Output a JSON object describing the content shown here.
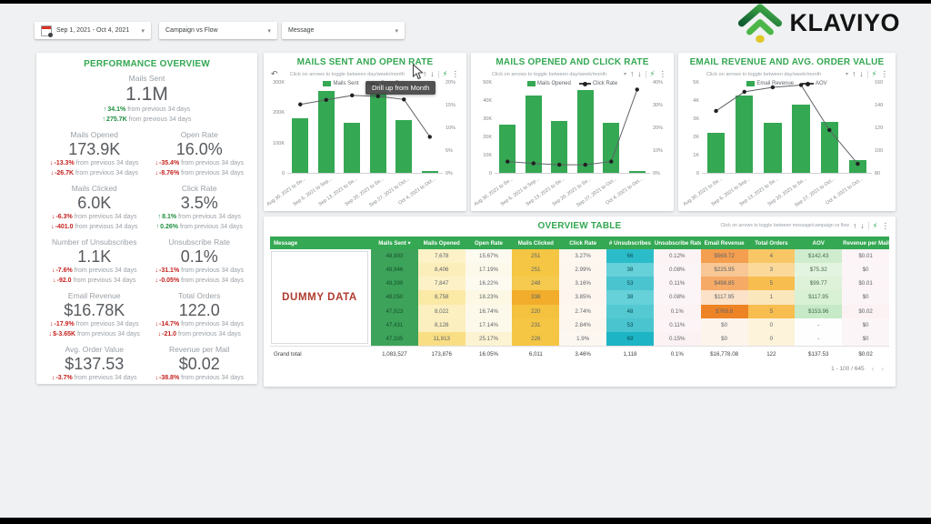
{
  "filters": {
    "date_range": {
      "label": "Sep 1, 2021 - Oct 4, 2021"
    },
    "campaign_flow": {
      "label": "Campaign vs Flow"
    },
    "message": {
      "label": "Message"
    }
  },
  "logo": {
    "text": "KLAVIYO"
  },
  "performance": {
    "title": "PERFORMANCE OVERVIEW",
    "metrics": [
      {
        "label": "Mails Sent",
        "value": "1.1M",
        "wide": true,
        "changes": [
          {
            "dir": "up",
            "value": "34.1%",
            "suffix": "from previous 34 days"
          },
          {
            "dir": "up",
            "value": "275.7K",
            "suffix": "from previous 34 days"
          }
        ]
      },
      {
        "label": "Mails Opened",
        "value": "173.9K",
        "changes": [
          {
            "dir": "down",
            "value": "-13.3%",
            "suffix": "from previous 34 days"
          },
          {
            "dir": "down",
            "value": "-26.7K",
            "suffix": "from previous 34 days"
          }
        ]
      },
      {
        "label": "Open Rate",
        "value": "16.0%",
        "changes": [
          {
            "dir": "down",
            "value": "-35.4%",
            "suffix": "from previous 34 days"
          },
          {
            "dir": "down",
            "value": "-8.76%",
            "suffix": "from previous 34 days"
          }
        ]
      },
      {
        "label": "Mails Clicked",
        "value": "6.0K",
        "changes": [
          {
            "dir": "down",
            "value": "-6.3%",
            "suffix": "from previous 34 days"
          },
          {
            "dir": "down",
            "value": "-401.0",
            "suffix": "from previous 34 days"
          }
        ]
      },
      {
        "label": "Click Rate",
        "value": "3.5%",
        "changes": [
          {
            "dir": "up",
            "value": "8.1%",
            "suffix": "from previous 34 days"
          },
          {
            "dir": "up",
            "value": "0.26%",
            "suffix": "from previous 34 days"
          }
        ]
      },
      {
        "label": "Number of Unsubscribes",
        "value": "1.1K",
        "changes": [
          {
            "dir": "down",
            "value": "-7.6%",
            "suffix": "from previous 34 days"
          },
          {
            "dir": "down",
            "value": "-92.0",
            "suffix": "from previous 34 days"
          }
        ]
      },
      {
        "label": "Unsubscribe Rate",
        "value": "0.1%",
        "changes": [
          {
            "dir": "down",
            "value": "-31.1%",
            "suffix": "from previous 34 days"
          },
          {
            "dir": "down",
            "value": "-0.05%",
            "suffix": "from previous 34 days"
          }
        ]
      },
      {
        "label": "Email Revenue",
        "value": "$16.78K",
        "changes": [
          {
            "dir": "down",
            "value": "-17.9%",
            "suffix": "from previous 34 days"
          },
          {
            "dir": "down",
            "value": "$-3.65K",
            "suffix": "from previous 34 days"
          }
        ]
      },
      {
        "label": "Total Orders",
        "value": "122.0",
        "changes": [
          {
            "dir": "down",
            "value": "-14.7%",
            "suffix": "from previous 34 days"
          },
          {
            "dir": "down",
            "value": "-21.0",
            "suffix": "from previous 34 days"
          }
        ]
      },
      {
        "label": "Avg. Order Value",
        "value": "$137.53",
        "changes": [
          {
            "dir": "down",
            "value": "-3.7%",
            "suffix": "from previous 34 days"
          },
          {
            "dir": "down",
            "value": "$-5.35",
            "suffix": "from previous 34 days"
          }
        ]
      },
      {
        "label": "Revenue per Mail",
        "value": "$0.02",
        "changes": [
          {
            "dir": "down",
            "value": "-38.8%",
            "suffix": "from previous 34 days"
          },
          {
            "dir": "down",
            "value": "$-0.01",
            "suffix": "from previous 34 days"
          }
        ]
      }
    ]
  },
  "chart_data": [
    {
      "type": "combo",
      "title": "MAILS SENT AND OPEN RATE",
      "categories": [
        "Aug 30, 2021 to Se...",
        "Sep 6, 2021 to Sep...",
        "Sep 13, 2021 to Se...",
        "Sep 20, 2021 to Se...",
        "Sep 27, 2021 to Oct...",
        "Oct 4, 2021 to Oct..."
      ],
      "series": [
        {
          "name": "Mails Sent",
          "type": "bar",
          "axis": "left",
          "values": [
            182000,
            272000,
            168000,
            268000,
            175000,
            6000
          ]
        },
        {
          "name": "Open Rate",
          "type": "line",
          "axis": "right",
          "values": [
            15.2,
            16.2,
            17.2,
            17.0,
            16.3,
            8.0
          ]
        }
      ],
      "axes": {
        "left": {
          "ticks": [
            "300K",
            "200K",
            "100K",
            "0"
          ],
          "min": 0,
          "max": 300000
        },
        "right": {
          "ticks": [
            "20%",
            "15%",
            "10%",
            "5%",
            "0%"
          ],
          "min": 0,
          "max": 20
        }
      },
      "ui": {
        "note": "Click on arrows to toggle between day/week/month",
        "has_undo": true,
        "tooltip": "Drill up from Month"
      }
    },
    {
      "type": "combo",
      "title": "MAILS OPENED AND CLICK RATE",
      "categories": [
        "Aug 30, 2021 to Se...",
        "Sep 6, 2021 to Sep...",
        "Sep 13, 2021 to Se...",
        "Sep 20, 2021 to Se...",
        "Sep 27, 2021 to Oct...",
        "Oct 4, 2021 to Oct..."
      ],
      "series": [
        {
          "name": "Mails Opened",
          "type": "bar",
          "axis": "left",
          "values": [
            27000,
            43000,
            29000,
            46000,
            28000,
            300
          ]
        },
        {
          "name": "Click Rate",
          "type": "line",
          "axis": "right",
          "values": [
            5.0,
            4.2,
            3.6,
            3.6,
            5.0,
            37.0
          ]
        }
      ],
      "axes": {
        "left": {
          "ticks": [
            "50K",
            "40K",
            "30K",
            "20K",
            "10K",
            "0"
          ],
          "min": 0,
          "max": 50000
        },
        "right": {
          "ticks": [
            "40%",
            "30%",
            "20%",
            "10%",
            "0%"
          ],
          "min": 0,
          "max": 40
        }
      },
      "ui": {
        "note": "Click on arrows to toggle between day/week/month",
        "has_undo": false
      }
    },
    {
      "type": "combo",
      "title": "EMAIL REVENUE AND AVG. ORDER VALUE",
      "categories": [
        "Aug 30, 2021 to Se...",
        "Sep 6, 2021 to Sep...",
        "Sep 13, 2021 to Se...",
        "Sep 20, 2021 to Se...",
        "Sep 27, 2021 to Oct...",
        "Oct 4, 2021 to Oct..."
      ],
      "series": [
        {
          "name": "Email Revenue",
          "type": "bar",
          "axis": "left",
          "values": [
            2200,
            4300,
            2800,
            3800,
            2850,
            700
          ]
        },
        {
          "name": "AOV",
          "type": "line",
          "axis": "right",
          "values": [
            135,
            152,
            156,
            158,
            118,
            88
          ]
        }
      ],
      "axes": {
        "left": {
          "ticks": [
            "5K",
            "4K",
            "3K",
            "2K",
            "1K",
            "0"
          ],
          "min": 0,
          "max": 5000
        },
        "right": {
          "ticks": [
            "160",
            "140",
            "120",
            "100",
            "80"
          ],
          "min": 80,
          "max": 160
        }
      },
      "ui": {
        "note": "Click on arrows to toggle between day/week/month",
        "has_undo": false
      }
    }
  ],
  "table": {
    "title": "OVERVIEW TABLE",
    "toolbar_note": "Click on arrows to toggle between message/campaign vs flow",
    "message_placeholder": "DUMMY DATA",
    "sort_column": "Mails Sent",
    "columns": [
      "Message",
      "Mails Sent",
      "Mails Opened",
      "Open Rate",
      "Mails Clicked",
      "Click Rate",
      "# Unsubscribes",
      "Unsubscribe Rate",
      "Email Revenue",
      "Total Orders",
      "AOV",
      "Revenue per Mail"
    ],
    "cell_text_colors": [
      "#14522c",
      "#5f6368",
      "#5f6368",
      "#5f6368",
      "#5f6368",
      "#0b4f55",
      "#5f6368",
      "#5f6368",
      "#5f6368",
      "#446b49",
      "#5f6368"
    ],
    "rows": [
      {
        "cells": [
          "48,993",
          "7,678",
          "15.67%",
          "251",
          "3.27%",
          "66",
          "0.12%",
          "$569.72",
          "4",
          "$142.43",
          "$0.01"
        ],
        "bgs": [
          "#3da35a",
          "#fdf2c7",
          "#fdfaf0",
          "#f5c643",
          "#fdf7f0",
          "#2bbcca",
          "#fcf3f5",
          "#f49e4f",
          "#f8c765",
          "#cfeccf",
          "#fcf4f6"
        ]
      },
      {
        "cells": [
          "48,946",
          "8,406",
          "17.19%",
          "251",
          "2.99%",
          "38",
          "0.08%",
          "$225.95",
          "3",
          "$75.32",
          "$0"
        ],
        "bgs": [
          "#3da35a",
          "#fceeba",
          "#fdf9ea",
          "#f5c643",
          "#fdf6ef",
          "#66d1d9",
          "#fcf5f7",
          "#f8c795",
          "#fad99b",
          "#e3f4e0",
          "#fcf5f7"
        ]
      },
      {
        "cells": [
          "48,399",
          "7,847",
          "16.22%",
          "248",
          "3.16%",
          "53",
          "0.11%",
          "$498.85",
          "5",
          "$99.77",
          "$0.01"
        ],
        "bgs": [
          "#3da35a",
          "#fdf2c7",
          "#fdfaf0",
          "#f6ca4e",
          "#fdf6ef",
          "#4ac4ce",
          "#fcf4f6",
          "#f5aa66",
          "#f7bd4f",
          "#def2da",
          "#fcf4f6"
        ]
      },
      {
        "cells": [
          "48,050",
          "8,758",
          "18.23%",
          "338",
          "3.85%",
          "38",
          "0.08%",
          "$117.95",
          "1",
          "$117.95",
          "$0"
        ],
        "bgs": [
          "#3da35a",
          "#fbe9a6",
          "#fdf8e4",
          "#f1ad2b",
          "#fdf5ee",
          "#66d1d9",
          "#fcf5f7",
          "#fbe2c8",
          "#fbe7bc",
          "#d8f0d4",
          "#fcf5f7"
        ]
      },
      {
        "cells": [
          "47,923",
          "8,022",
          "16.74%",
          "220",
          "2.74%",
          "48",
          "0.1%",
          "$769.8",
          "5",
          "$153.96",
          "$0.02"
        ],
        "bgs": [
          "#3da35a",
          "#fcf0c1",
          "#fdf9ea",
          "#f4c23e",
          "#fdf7f0",
          "#54c9d2",
          "#fcf3f5",
          "#ee8325",
          "#f7bd4f",
          "#c6e9c7",
          "#fcf2f4"
        ]
      },
      {
        "cells": [
          "47,431",
          "8,128",
          "17.14%",
          "231",
          "2.84%",
          "53",
          "0.11%",
          "$0",
          "0",
          "-",
          "$0"
        ],
        "bgs": [
          "#3da35a",
          "#fcefbf",
          "#fdf9ea",
          "#f5c643",
          "#fdf6ef",
          "#4ac4ce",
          "#fcf4f6",
          "#fdf5ec",
          "#fdf3db",
          "#fefefe",
          "#fcf5f7"
        ]
      },
      {
        "cells": [
          "47,335",
          "11,913",
          "25.17%",
          "226",
          "1.9%",
          "69",
          "0.15%",
          "$0",
          "0",
          "-",
          "$0"
        ],
        "bgs": [
          "#3da35a",
          "#f9de84",
          "#fcf3d2",
          "#f5c643",
          "#fdf7f1",
          "#1db5c5",
          "#fcf2f4",
          "#fdf5ec",
          "#fdf3db",
          "#fefefe",
          "#fcf5f7"
        ]
      }
    ],
    "grand_total": {
      "label": "Grand total",
      "cells": [
        "1,083,527",
        "173,876",
        "16.05%",
        "6,011",
        "3.46%",
        "1,118",
        "0.1%",
        "$16,778.08",
        "122",
        "$137.53",
        "$0.02"
      ]
    },
    "pagination": "1 - 100 / 645"
  },
  "colors": {
    "accent_green": "#34a853",
    "trend_up": "#1e8e3e",
    "trend_down": "#c5221f",
    "dummy_red": "#b03a2e"
  }
}
